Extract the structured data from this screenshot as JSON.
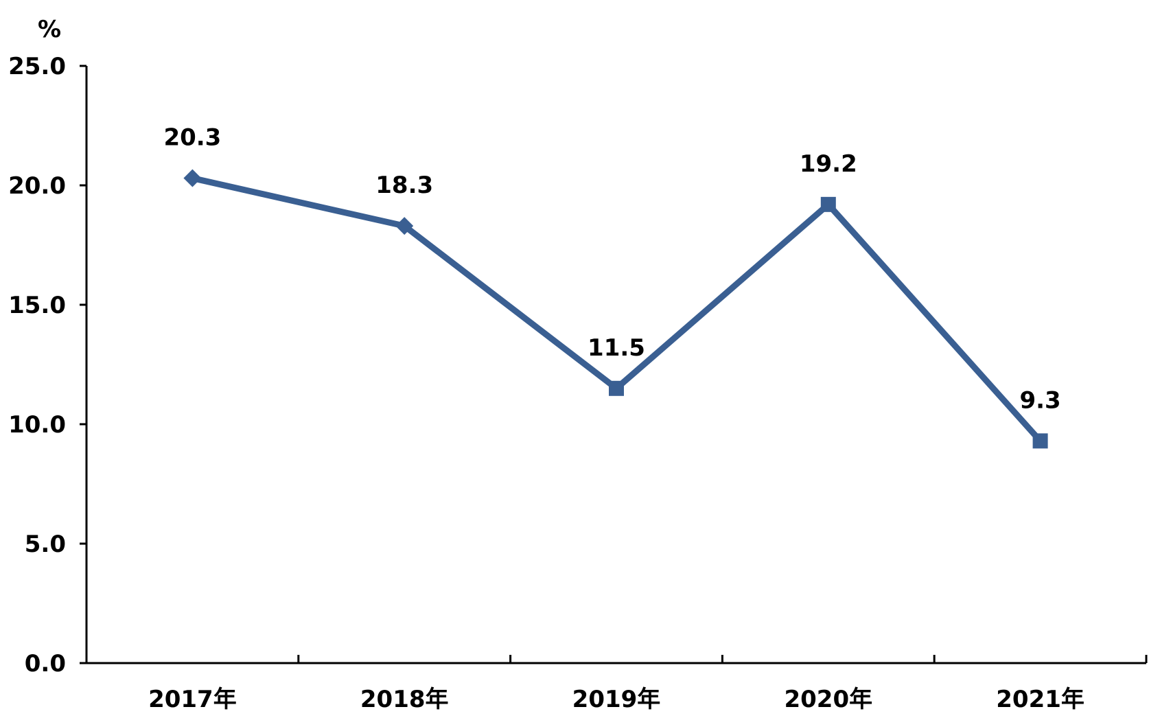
{
  "chart_data": {
    "type": "line",
    "title": "",
    "unit_label": "%",
    "xlabel": "",
    "ylabel": "",
    "categories": [
      "2017年",
      "2018年",
      "2019年",
      "2020年",
      "2021年"
    ],
    "series": [
      {
        "values": [
          20.3,
          18.3,
          11.5,
          19.2,
          9.3
        ],
        "color": "#3A5F92",
        "markers": [
          "diamond",
          "diamond",
          "square",
          "square",
          "square"
        ]
      }
    ],
    "data_labels": [
      "20.3",
      "18.3",
      "11.5",
      "19.2",
      "9.3"
    ],
    "ylim": [
      0,
      25
    ],
    "y_ticks": [
      "0.0",
      "5.0",
      "10.0",
      "15.0",
      "20.0",
      "25.0"
    ],
    "grid": false,
    "legend": "none"
  }
}
